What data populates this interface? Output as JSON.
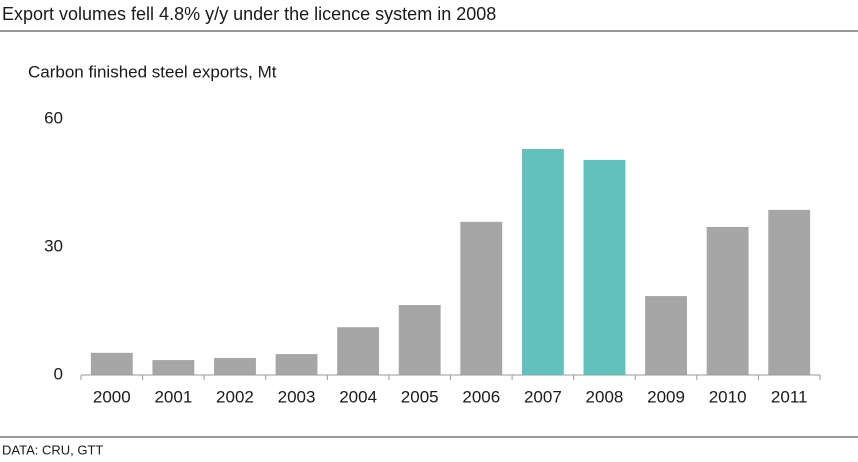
{
  "chart_data": {
    "type": "bar",
    "title": "Export volumes fell 4.8% y/y under the licence system in 2008",
    "subtitle": "Carbon finished steel exports, Mt",
    "source": "DATA: CRU, GTT",
    "categories": [
      "2000",
      "2001",
      "2002",
      "2003",
      "2004",
      "2005",
      "2006",
      "2007",
      "2008",
      "2009",
      "2010",
      "2011"
    ],
    "values": [
      5.2,
      3.5,
      4.0,
      4.9,
      11.2,
      16.4,
      35.9,
      53.0,
      50.4,
      18.5,
      34.7,
      38.7
    ],
    "colors": [
      "#a6a6a6",
      "#a6a6a6",
      "#a6a6a6",
      "#a6a6a6",
      "#a6a6a6",
      "#a6a6a6",
      "#a6a6a6",
      "#62c1bc",
      "#62c1bc",
      "#a6a6a6",
      "#a6a6a6",
      "#a6a6a6"
    ],
    "ylim": [
      0,
      60
    ],
    "yticks": [
      0,
      30,
      60
    ],
    "grid": false
  }
}
